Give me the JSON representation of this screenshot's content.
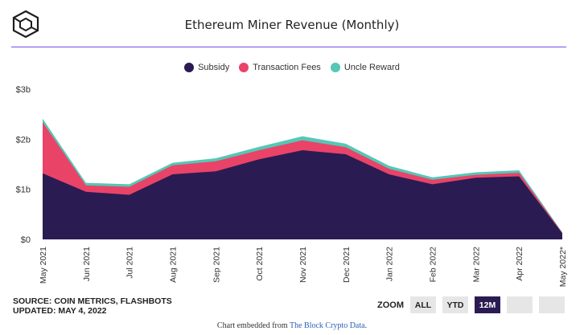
{
  "title": "Ethereum Miner Revenue (Monthly)",
  "legend": [
    {
      "label": "Subsidy",
      "color": "#2b1b53"
    },
    {
      "label": "Transaction Fees",
      "color": "#ea4368"
    },
    {
      "label": "Uncle Reward",
      "color": "#55c7b6"
    }
  ],
  "source": {
    "line1": "SOURCE: COIN METRICS, FLASHBOTS",
    "line2": "UPDATED: MAY 4, 2022"
  },
  "zoom": {
    "label": "ZOOM",
    "buttons": [
      {
        "label": "ALL",
        "active": false
      },
      {
        "label": "YTD",
        "active": false
      },
      {
        "label": "12M",
        "active": true
      },
      {
        "label": "",
        "active": false
      },
      {
        "label": "",
        "active": false
      }
    ]
  },
  "footer": {
    "prefix": "Chart embedded from ",
    "link": "The Block Crypto Data",
    "suffix": "."
  },
  "chart_data": {
    "type": "area",
    "stacked": true,
    "title": "Ethereum Miner Revenue (Monthly)",
    "categories": [
      "May 2021",
      "Jun 2021",
      "Jul 2021",
      "Aug 2021",
      "Sep 2021",
      "Oct 2021",
      "Nov 2021",
      "Dec 2021",
      "Jan 2022",
      "Feb 2022",
      "Mar 2022",
      "Apr 2022",
      "May 2022*"
    ],
    "series": [
      {
        "name": "Subsidy",
        "color": "#2b1b53",
        "values": [
          1.32,
          0.95,
          0.89,
          1.3,
          1.36,
          1.6,
          1.78,
          1.7,
          1.3,
          1.1,
          1.23,
          1.26,
          0.12
        ]
      },
      {
        "name": "Transaction Fees",
        "color": "#ea4368",
        "values": [
          1.02,
          0.13,
          0.16,
          0.18,
          0.2,
          0.18,
          0.2,
          0.14,
          0.11,
          0.09,
          0.06,
          0.07,
          0.01
        ]
      },
      {
        "name": "Uncle Reward",
        "color": "#55c7b6",
        "values": [
          0.07,
          0.05,
          0.05,
          0.05,
          0.06,
          0.07,
          0.08,
          0.07,
          0.06,
          0.05,
          0.05,
          0.05,
          0.01
        ]
      }
    ],
    "y_ticks": [
      "$0",
      "$1b",
      "$2b",
      "$3b"
    ],
    "ylim": [
      0,
      3
    ],
    "y_unit": "billions USD",
    "grid": false,
    "legend_position": "top-center"
  }
}
